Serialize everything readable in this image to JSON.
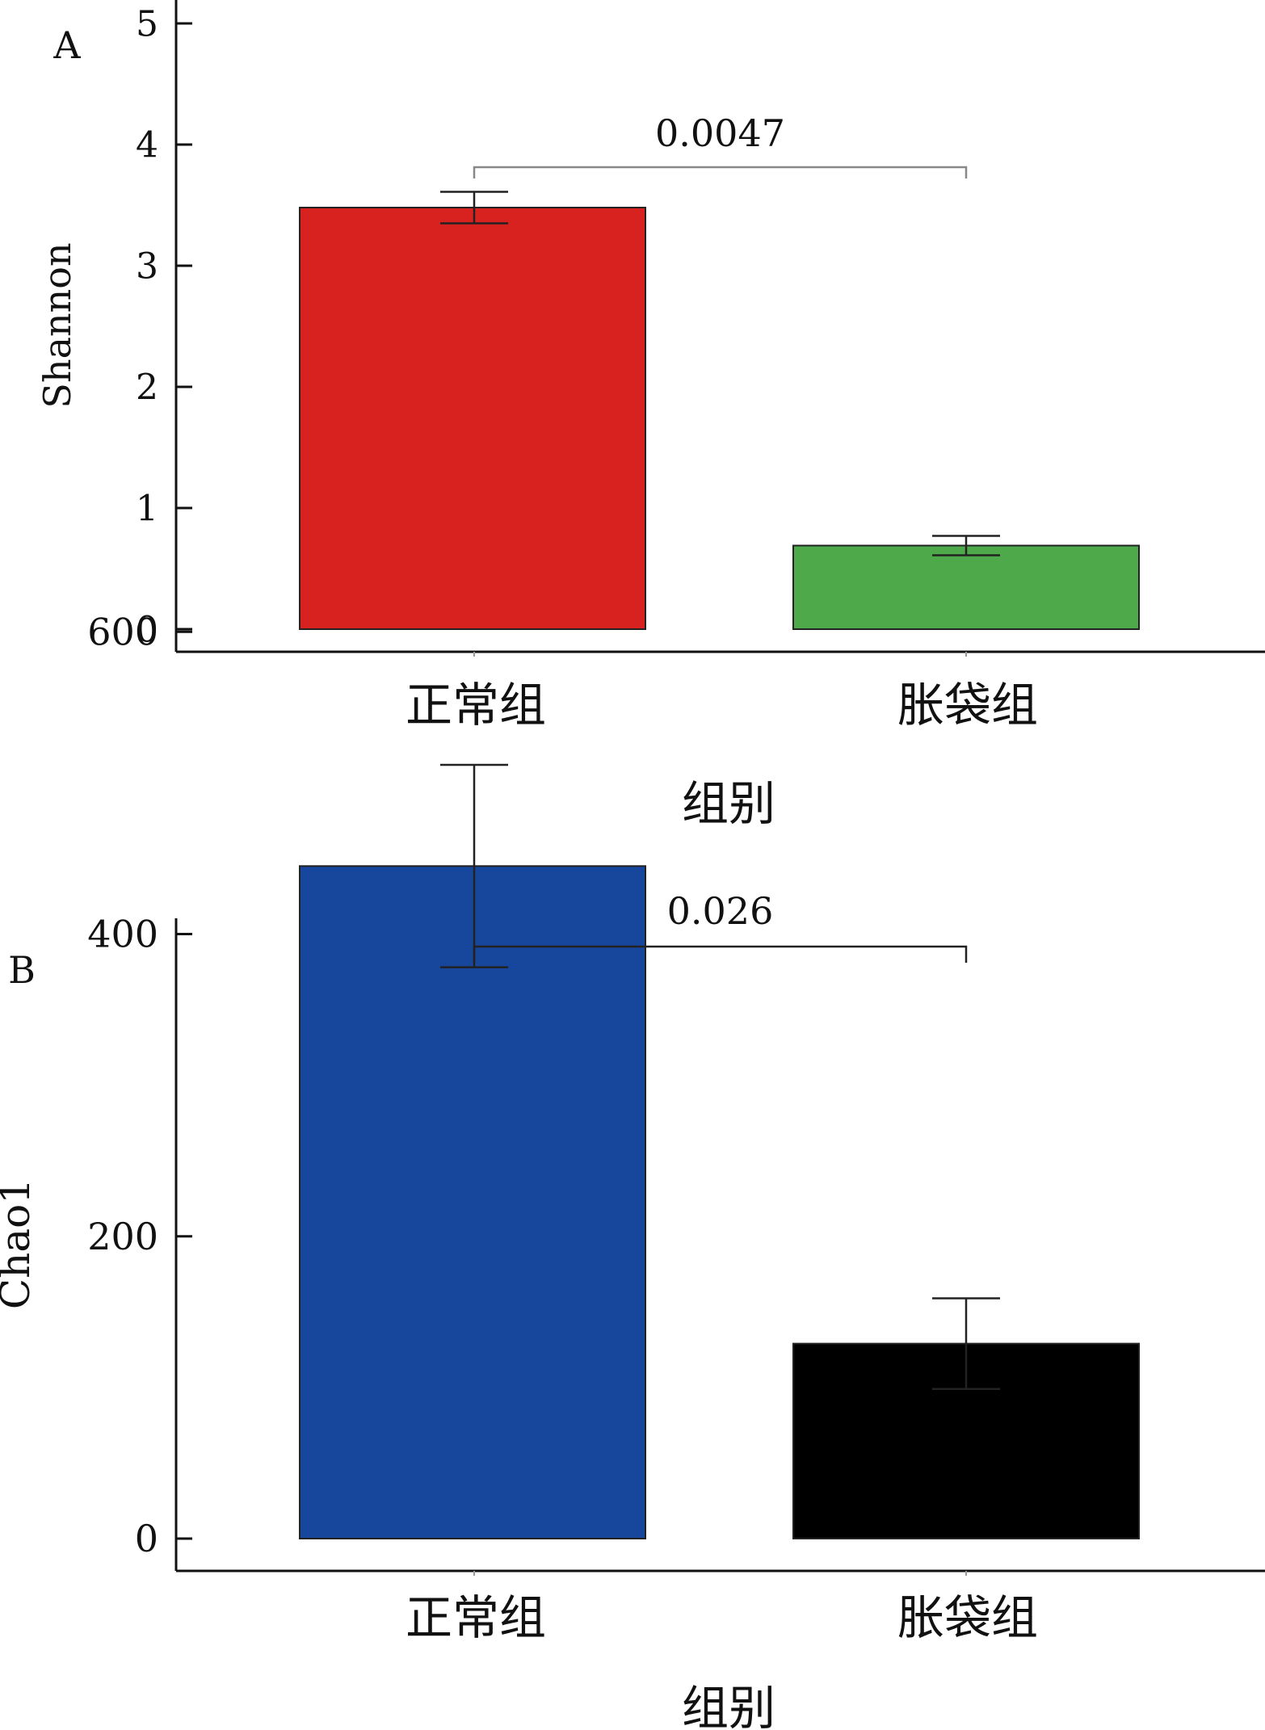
{
  "chart_data": [
    {
      "type": "bar",
      "panel_label": "A",
      "categories": [
        "正常组",
        "胀袋组"
      ],
      "values": [
        3.48,
        0.69
      ],
      "errors": [
        0.13,
        0.08
      ],
      "colors": [
        "#d7221f",
        "#4ea94a"
      ],
      "ylabel": "Shannon",
      "xlabel": "组别",
      "ylim": [
        0,
        5
      ],
      "yticks": [
        0,
        1,
        2,
        3,
        4,
        5
      ],
      "ytick_labels": [
        "0",
        "1",
        "2",
        "3",
        "4",
        "5"
      ],
      "significance": {
        "label": "0.0047",
        "from": 0,
        "to": 1
      },
      "grid": false,
      "legend": "none"
    },
    {
      "type": "bar",
      "panel_label": "B",
      "categories": [
        "正常组",
        "胀袋组"
      ],
      "values": [
        445,
        129
      ],
      "errors": [
        67,
        30
      ],
      "colors": [
        "#17479c",
        "#000000"
      ],
      "ylabel": "Chao1",
      "xlabel": "组别",
      "ylim": [
        0,
        620
      ],
      "yticks": [
        0,
        200,
        400,
        600
      ],
      "ytick_labels": [
        "0",
        "200",
        "400",
        "600"
      ],
      "significance": {
        "label": "0.026",
        "from": 0,
        "to": 1
      },
      "grid": false,
      "legend": "none"
    }
  ]
}
